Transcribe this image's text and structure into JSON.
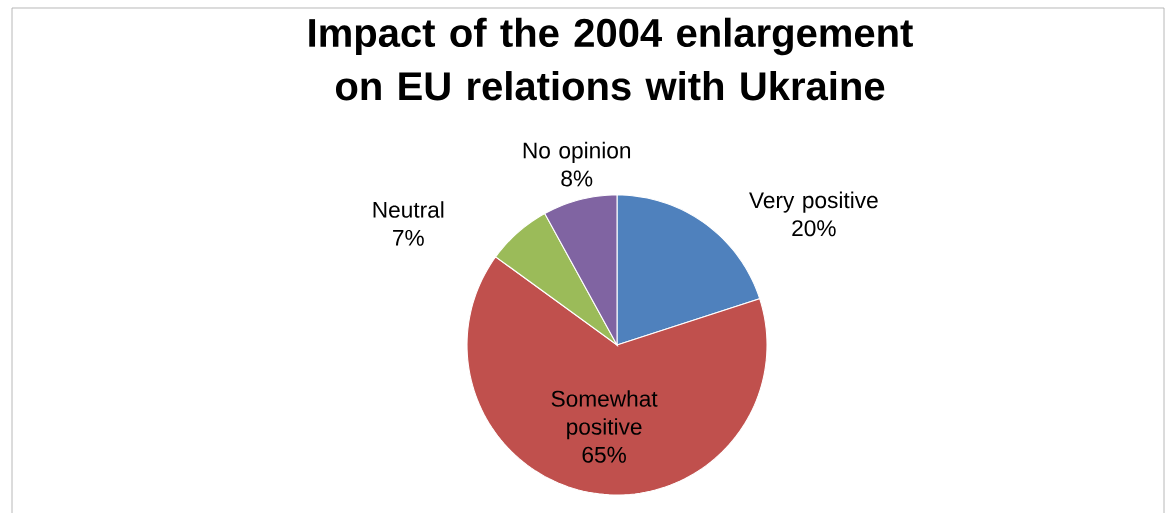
{
  "chart_data": {
    "type": "pie",
    "title": "Impact of the 2004 enlargement on EU relations with Ukraine",
    "categories": [
      "Very positive",
      "Somewhat positive",
      "Neutral",
      "No opinion"
    ],
    "values": [
      20,
      65,
      7,
      8
    ],
    "value_labels": [
      "20%",
      "65%",
      "7%",
      "8%"
    ],
    "colors": [
      "#4f81bd",
      "#c0504d",
      "#9bbb59",
      "#8064a2"
    ]
  }
}
